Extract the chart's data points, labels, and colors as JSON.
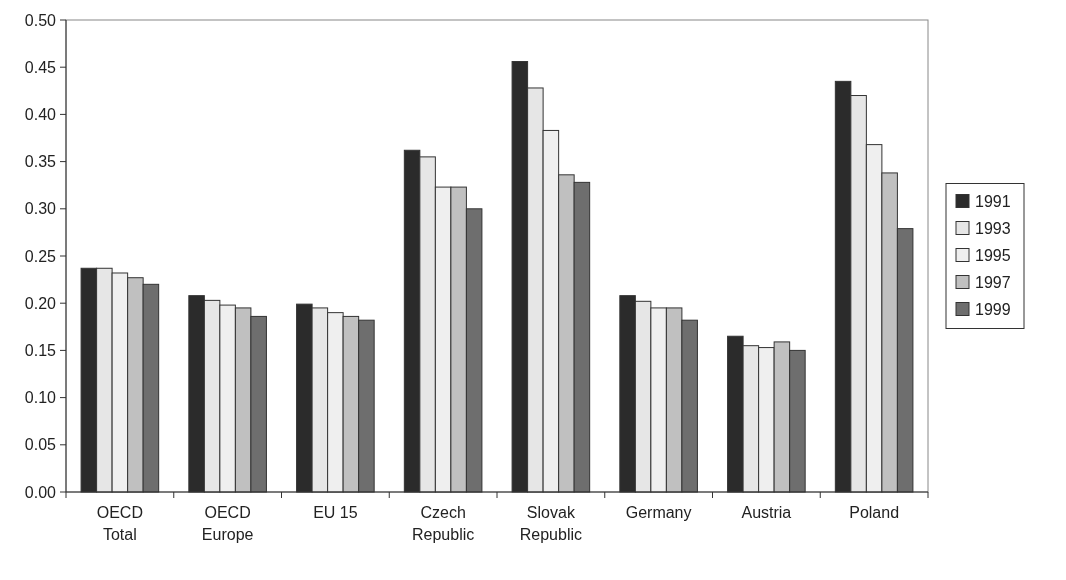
{
  "chart_data": {
    "type": "bar",
    "categories": [
      "OECD Total",
      "OECD Europe",
      "EU 15",
      "Czech Republic",
      "Slovak Republic",
      "Germany",
      "Austria",
      "Poland"
    ],
    "series": [
      {
        "name": "1991",
        "color": "#2b2b2b",
        "values": [
          0.237,
          0.208,
          0.199,
          0.362,
          0.456,
          0.208,
          0.165,
          0.435
        ]
      },
      {
        "name": "1993",
        "color": "#e6e6e6",
        "values": [
          0.237,
          0.203,
          0.195,
          0.355,
          0.428,
          0.202,
          0.155,
          0.42
        ]
      },
      {
        "name": "1995",
        "color": "#efefef",
        "values": [
          0.232,
          0.198,
          0.19,
          0.323,
          0.383,
          0.195,
          0.153,
          0.368
        ]
      },
      {
        "name": "1997",
        "color": "#c0c0c0",
        "values": [
          0.227,
          0.195,
          0.186,
          0.323,
          0.336,
          0.195,
          0.159,
          0.338
        ]
      },
      {
        "name": "1999",
        "color": "#6e6e6e",
        "values": [
          0.22,
          0.186,
          0.182,
          0.3,
          0.328,
          0.182,
          0.15,
          0.279
        ]
      }
    ],
    "ylim": [
      0,
      0.5
    ],
    "yticks": [
      {
        "value": 0,
        "label": "0.00"
      },
      {
        "value": 0.05,
        "label": "0.05"
      },
      {
        "value": 0.1,
        "label": "0.10"
      },
      {
        "value": 0.15,
        "label": "0.15"
      },
      {
        "value": 0.2,
        "label": "0.20"
      },
      {
        "value": 0.25,
        "label": "0.25"
      },
      {
        "value": 0.3,
        "label": "0.30"
      },
      {
        "value": 0.35,
        "label": "0.35"
      },
      {
        "value": 0.4,
        "label": "0.40"
      },
      {
        "value": 0.45,
        "label": "0.45"
      },
      {
        "value": 0.5,
        "label": "0.50"
      }
    ],
    "grid": false,
    "legend": "right"
  }
}
